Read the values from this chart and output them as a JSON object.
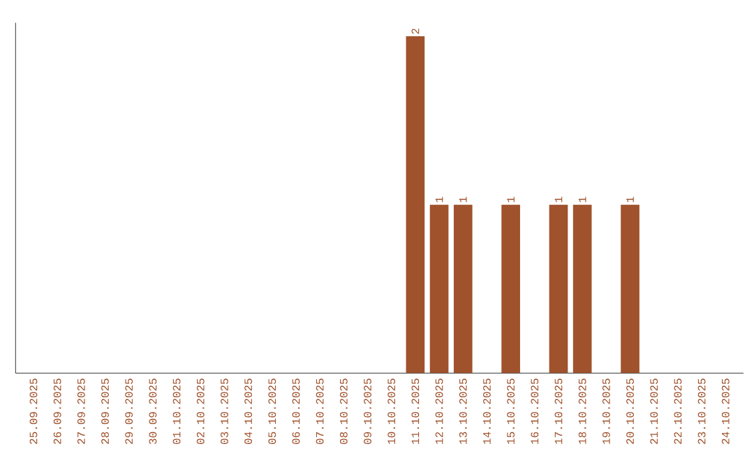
{
  "chart_data": {
    "type": "bar",
    "color": "#a0522d",
    "categories": [
      "25.09.2025",
      "26.09.2025",
      "27.09.2025",
      "28.09.2025",
      "29.09.2025",
      "30.09.2025",
      "01.10.2025",
      "02.10.2025",
      "03.10.2025",
      "04.10.2025",
      "05.10.2025",
      "06.10.2025",
      "07.10.2025",
      "08.10.2025",
      "09.10.2025",
      "10.10.2025",
      "11.10.2025",
      "12.10.2025",
      "13.10.2025",
      "14.10.2025",
      "15.10.2025",
      "16.10.2025",
      "17.10.2025",
      "18.10.2025",
      "19.10.2025",
      "20.10.2025",
      "21.10.2025",
      "22.10.2025",
      "23.10.2025",
      "24.10.2025"
    ],
    "values": [
      null,
      null,
      null,
      null,
      null,
      null,
      null,
      null,
      null,
      null,
      null,
      null,
      null,
      null,
      null,
      null,
      2,
      1,
      1,
      null,
      1,
      null,
      1,
      1,
      null,
      1,
      null,
      null,
      null,
      null
    ],
    "data_labels": true,
    "tick_labels": "x",
    "grid": false
  }
}
